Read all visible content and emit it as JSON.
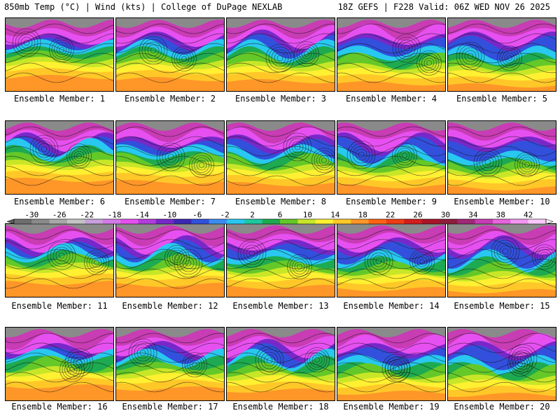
{
  "header": {
    "left": "850mb Temp (°C) | Wind (kts) | College of DuPage NEXLAB",
    "right": "18Z GEFS | F228 Valid: 06Z WED NOV 26 2025"
  },
  "members": [
    "Ensemble Member: 1",
    "Ensemble Member: 2",
    "Ensemble Member: 3",
    "Ensemble Member: 4",
    "Ensemble Member: 5",
    "Ensemble Member: 6",
    "Ensemble Member: 7",
    "Ensemble Member: 8",
    "Ensemble Member: 9",
    "Ensemble Member: 10",
    "Ensemble Member: 11",
    "Ensemble Member: 12",
    "Ensemble Member: 13",
    "Ensemble Member: 14",
    "Ensemble Member: 15",
    "Ensemble Member: 16",
    "Ensemble Member: 17",
    "Ensemble Member: 18",
    "Ensemble Member: 19",
    "Ensemble Member: 20"
  ],
  "colorbar": {
    "ticks": [
      "-30",
      "-26",
      "-22",
      "-18",
      "-14",
      "-10",
      "-6",
      "-2",
      "2",
      "6",
      "10",
      "14",
      "18",
      "22",
      "26",
      "30",
      "34",
      "38",
      "42"
    ],
    "colors": [
      "#6e6e6e",
      "#8a8a8a",
      "#a8a8a8",
      "#c4c4c4",
      "#c8a0dc",
      "#d27ae6",
      "#e650f0",
      "#b43cdc",
      "#7828c8",
      "#3c28b4",
      "#3250dc",
      "#3c8cf0",
      "#28c8f0",
      "#1ec8a0",
      "#1eaa50",
      "#64c828",
      "#c8e628",
      "#fff032",
      "#ffc828",
      "#ff9628",
      "#ff6414",
      "#f03c14",
      "#d21e1e",
      "#aa1428",
      "#8c1e3c",
      "#a02878",
      "#c83cb4",
      "#e664dc",
      "#f096f0",
      "#fac8fa"
    ]
  }
}
